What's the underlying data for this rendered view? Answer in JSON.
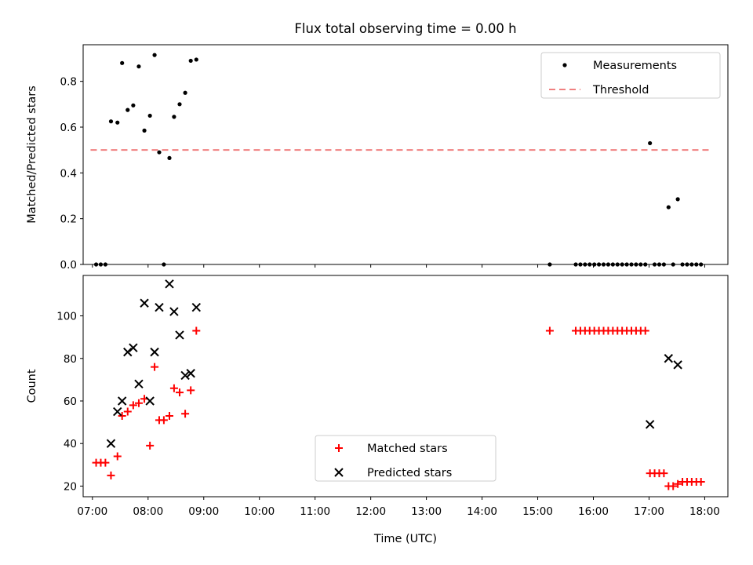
{
  "title": "Flux total observing time = 0.00 h",
  "chart_data": [
    {
      "type": "scatter",
      "ylabel": "Matched/Predicted stars",
      "xlim": [
        "06:50",
        "18:25"
      ],
      "ylim": [
        0,
        0.96
      ],
      "yticks": [
        0.0,
        0.2,
        0.4,
        0.6,
        0.8
      ],
      "ytick_labels": [
        "0.0",
        "0.2",
        "0.4",
        "0.6",
        "0.8"
      ],
      "legend_position": "top-right",
      "grid": false,
      "series": [
        {
          "name": "Measurements",
          "marker": "dot",
          "color": "#000000",
          "points": [
            [
              "07:04",
              0.0
            ],
            [
              "07:09",
              0.0
            ],
            [
              "07:14",
              0.0
            ],
            [
              "07:20",
              0.625
            ],
            [
              "07:27",
              0.62
            ],
            [
              "07:32",
              0.88
            ],
            [
              "07:38",
              0.675
            ],
            [
              "07:44",
              0.695
            ],
            [
              "07:50",
              0.865
            ],
            [
              "07:56",
              0.585
            ],
            [
              "08:02",
              0.65
            ],
            [
              "08:07",
              0.915
            ],
            [
              "08:12",
              0.49
            ],
            [
              "08:17",
              0.0
            ],
            [
              "08:23",
              0.465
            ],
            [
              "08:28",
              0.645
            ],
            [
              "08:34",
              0.7
            ],
            [
              "08:40",
              0.75
            ],
            [
              "08:46",
              0.89
            ],
            [
              "08:52",
              0.895
            ],
            [
              "15:13",
              0.0
            ],
            [
              "15:41",
              0.0
            ],
            [
              "15:46",
              0.0
            ],
            [
              "15:51",
              0.0
            ],
            [
              "15:56",
              0.0
            ],
            [
              "16:01",
              0.0
            ],
            [
              "16:06",
              0.0
            ],
            [
              "16:11",
              0.0
            ],
            [
              "16:16",
              0.0
            ],
            [
              "16:21",
              0.0
            ],
            [
              "16:26",
              0.0
            ],
            [
              "16:31",
              0.0
            ],
            [
              "16:36",
              0.0
            ],
            [
              "16:41",
              0.0
            ],
            [
              "16:46",
              0.0
            ],
            [
              "16:51",
              0.0
            ],
            [
              "16:56",
              0.0
            ],
            [
              "17:01",
              0.53
            ],
            [
              "17:06",
              0.0
            ],
            [
              "17:11",
              0.0
            ],
            [
              "17:16",
              0.0
            ],
            [
              "17:21",
              0.25
            ],
            [
              "17:26",
              0.0
            ],
            [
              "17:31",
              0.285
            ],
            [
              "17:36",
              0.0
            ],
            [
              "17:41",
              0.0
            ],
            [
              "17:46",
              0.0
            ],
            [
              "17:51",
              0.0
            ],
            [
              "17:56",
              0.0
            ]
          ]
        },
        {
          "name": "Threshold",
          "marker": "dashed-line",
          "color": "#f08080",
          "points": [
            [
              "06:58",
              0.5
            ],
            [
              "18:06",
              0.5
            ]
          ]
        }
      ]
    },
    {
      "type": "scatter",
      "xlabel": "Time (UTC)",
      "ylabel": "Count",
      "xlim": [
        "06:50",
        "18:25"
      ],
      "ylim": [
        15,
        119
      ],
      "yticks": [
        20,
        40,
        60,
        80,
        100
      ],
      "ytick_labels": [
        "20",
        "40",
        "60",
        "80",
        "100"
      ],
      "xticks": [
        "07:00",
        "08:00",
        "09:00",
        "10:00",
        "11:00",
        "12:00",
        "13:00",
        "14:00",
        "15:00",
        "16:00",
        "17:00",
        "18:00"
      ],
      "legend_position": "lower-center",
      "grid": false,
      "series": [
        {
          "name": "Matched stars",
          "marker": "plus",
          "color": "#ff0000",
          "points": [
            [
              "07:04",
              31
            ],
            [
              "07:09",
              31
            ],
            [
              "07:14",
              31
            ],
            [
              "07:20",
              25
            ],
            [
              "07:27",
              34
            ],
            [
              "07:32",
              53
            ],
            [
              "07:38",
              55
            ],
            [
              "07:44",
              58
            ],
            [
              "07:50",
              59
            ],
            [
              "07:56",
              61
            ],
            [
              "08:02",
              39
            ],
            [
              "08:07",
              76
            ],
            [
              "08:12",
              51
            ],
            [
              "08:17",
              51
            ],
            [
              "08:23",
              53
            ],
            [
              "08:28",
              66
            ],
            [
              "08:34",
              64
            ],
            [
              "08:40",
              54
            ],
            [
              "08:46",
              65
            ],
            [
              "08:52",
              93
            ],
            [
              "15:13",
              93
            ],
            [
              "15:41",
              93
            ],
            [
              "15:46",
              93
            ],
            [
              "15:51",
              93
            ],
            [
              "15:56",
              93
            ],
            [
              "16:01",
              93
            ],
            [
              "16:06",
              93
            ],
            [
              "16:11",
              93
            ],
            [
              "16:16",
              93
            ],
            [
              "16:21",
              93
            ],
            [
              "16:26",
              93
            ],
            [
              "16:31",
              93
            ],
            [
              "16:36",
              93
            ],
            [
              "16:41",
              93
            ],
            [
              "16:46",
              93
            ],
            [
              "16:51",
              93
            ],
            [
              "16:56",
              93
            ],
            [
              "17:01",
              26
            ],
            [
              "17:06",
              26
            ],
            [
              "17:11",
              26
            ],
            [
              "17:16",
              26
            ],
            [
              "17:21",
              20
            ],
            [
              "17:26",
              20
            ],
            [
              "17:31",
              21
            ],
            [
              "17:36",
              22
            ],
            [
              "17:41",
              22
            ],
            [
              "17:46",
              22
            ],
            [
              "17:51",
              22
            ],
            [
              "17:56",
              22
            ]
          ]
        },
        {
          "name": "Predicted stars",
          "marker": "x",
          "color": "#000000",
          "points": [
            [
              "07:20",
              40
            ],
            [
              "07:27",
              55
            ],
            [
              "07:32",
              60
            ],
            [
              "07:38",
              83
            ],
            [
              "07:44",
              85
            ],
            [
              "07:50",
              68
            ],
            [
              "07:56",
              106
            ],
            [
              "08:02",
              60
            ],
            [
              "08:07",
              83
            ],
            [
              "08:12",
              104
            ],
            [
              "08:23",
              115
            ],
            [
              "08:28",
              102
            ],
            [
              "08:34",
              91
            ],
            [
              "08:40",
              72
            ],
            [
              "08:46",
              73
            ],
            [
              "08:52",
              104
            ],
            [
              "17:01",
              49
            ],
            [
              "17:21",
              80
            ],
            [
              "17:31",
              77
            ]
          ]
        }
      ]
    }
  ]
}
